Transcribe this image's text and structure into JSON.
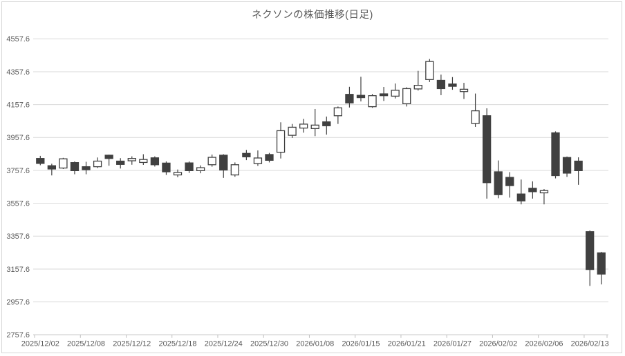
{
  "chart": {
    "title": "ネクソンの株価推移(日足)",
    "colors": {
      "up_fill": "#ffffff",
      "down_fill": "#404040",
      "candle_outline": "#404040",
      "wick": "#404040",
      "gridline": "#d9d9d9",
      "axis_line": "#bfbfbf",
      "axis_text": "#595959",
      "title_text": "#595959",
      "background": "#ffffff",
      "frame_border": "#d6d6d6"
    }
  },
  "chart_data": {
    "type": "candlestick",
    "title": "ネクソンの株価推移(日足)",
    "xlabel": "",
    "ylabel": "",
    "grid": true,
    "legend": false,
    "y_axis": {
      "min": 2757.6,
      "max": 4557.6,
      "step": 200,
      "tick_labels": [
        "4557.6",
        "4357.6",
        "4157.6",
        "3957.6",
        "3757.6",
        "3557.6",
        "3357.6",
        "3157.6",
        "2957.6",
        "2757.6"
      ]
    },
    "x_axis": {
      "label_every": 4,
      "tick_labels": [
        "2025/12/02",
        "2025/12/08",
        "2025/12/12",
        "2025/12/18",
        "2025/12/24",
        "2025/12/30",
        "2026/01/08",
        "2026/01/15",
        "2026/01/21",
        "2026/01/27",
        "2026/02/02",
        "2026/02/06",
        "2026/02/13"
      ]
    },
    "series": [
      {
        "date": "2025/12/02",
        "open": 3830,
        "high": 3846,
        "low": 3789,
        "close": 3800
      },
      {
        "date": "2025/12/03",
        "open": 3786,
        "high": 3798,
        "low": 3727,
        "close": 3766
      },
      {
        "date": "2025/12/04",
        "open": 3772,
        "high": 3834,
        "low": 3766,
        "close": 3828
      },
      {
        "date": "2025/12/05",
        "open": 3805,
        "high": 3812,
        "low": 3734,
        "close": 3756
      },
      {
        "date": "2025/12/08",
        "open": 3780,
        "high": 3810,
        "low": 3734,
        "close": 3762
      },
      {
        "date": "2025/12/09",
        "open": 3780,
        "high": 3836,
        "low": 3772,
        "close": 3814
      },
      {
        "date": "2025/12/10",
        "open": 3850,
        "high": 3853,
        "low": 3786,
        "close": 3830
      },
      {
        "date": "2025/12/11",
        "open": 3814,
        "high": 3832,
        "low": 3769,
        "close": 3794
      },
      {
        "date": "2025/12/12",
        "open": 3816,
        "high": 3843,
        "low": 3792,
        "close": 3830
      },
      {
        "date": "2025/12/15",
        "open": 3806,
        "high": 3856,
        "low": 3791,
        "close": 3824
      },
      {
        "date": "2025/12/16",
        "open": 3834,
        "high": 3843,
        "low": 3781,
        "close": 3792
      },
      {
        "date": "2025/12/17",
        "open": 3802,
        "high": 3812,
        "low": 3730,
        "close": 3749
      },
      {
        "date": "2025/12/18",
        "open": 3730,
        "high": 3763,
        "low": 3716,
        "close": 3745
      },
      {
        "date": "2025/12/19",
        "open": 3803,
        "high": 3812,
        "low": 3742,
        "close": 3756
      },
      {
        "date": "2025/12/22",
        "open": 3756,
        "high": 3788,
        "low": 3740,
        "close": 3774
      },
      {
        "date": "2025/12/23",
        "open": 3792,
        "high": 3854,
        "low": 3780,
        "close": 3837
      },
      {
        "date": "2025/12/24",
        "open": 3850,
        "high": 3856,
        "low": 3712,
        "close": 3760
      },
      {
        "date": "2025/12/25",
        "open": 3730,
        "high": 3806,
        "low": 3719,
        "close": 3792
      },
      {
        "date": "2025/12/26",
        "open": 3861,
        "high": 3882,
        "low": 3820,
        "close": 3840
      },
      {
        "date": "2025/12/29",
        "open": 3799,
        "high": 3879,
        "low": 3785,
        "close": 3833
      },
      {
        "date": "2025/12/30",
        "open": 3854,
        "high": 3864,
        "low": 3806,
        "close": 3819
      },
      {
        "date": "2026/01/05",
        "open": 3868,
        "high": 4050,
        "low": 3830,
        "close": 3999
      },
      {
        "date": "2026/01/06",
        "open": 3971,
        "high": 4040,
        "low": 3955,
        "close": 4020
      },
      {
        "date": "2026/01/07",
        "open": 4015,
        "high": 4071,
        "low": 3987,
        "close": 4039
      },
      {
        "date": "2026/01/08",
        "open": 4012,
        "high": 4131,
        "low": 3966,
        "close": 4033
      },
      {
        "date": "2026/01/09",
        "open": 4053,
        "high": 4085,
        "low": 3975,
        "close": 4029
      },
      {
        "date": "2026/01/13",
        "open": 4090,
        "high": 4146,
        "low": 4040,
        "close": 4138
      },
      {
        "date": "2026/01/14",
        "open": 4220,
        "high": 4266,
        "low": 4140,
        "close": 4168
      },
      {
        "date": "2026/01/15",
        "open": 4214,
        "high": 4327,
        "low": 4177,
        "close": 4200
      },
      {
        "date": "2026/01/16",
        "open": 4145,
        "high": 4222,
        "low": 4138,
        "close": 4212
      },
      {
        "date": "2026/01/19",
        "open": 4223,
        "high": 4265,
        "low": 4180,
        "close": 4212
      },
      {
        "date": "2026/01/20",
        "open": 4209,
        "high": 4286,
        "low": 4195,
        "close": 4245
      },
      {
        "date": "2026/01/21",
        "open": 4163,
        "high": 4263,
        "low": 4146,
        "close": 4255
      },
      {
        "date": "2026/01/22",
        "open": 4253,
        "high": 4363,
        "low": 4243,
        "close": 4275
      },
      {
        "date": "2026/01/23",
        "open": 4310,
        "high": 4435,
        "low": 4295,
        "close": 4420
      },
      {
        "date": "2026/01/26",
        "open": 4305,
        "high": 4340,
        "low": 4215,
        "close": 4255
      },
      {
        "date": "2026/01/27",
        "open": 4283,
        "high": 4325,
        "low": 4248,
        "close": 4269
      },
      {
        "date": "2026/01/28",
        "open": 4237,
        "high": 4290,
        "low": 4192,
        "close": 4251
      },
      {
        "date": "2026/01/29",
        "open": 4043,
        "high": 4225,
        "low": 4022,
        "close": 4120
      },
      {
        "date": "2026/01/30",
        "open": 4090,
        "high": 4135,
        "low": 3586,
        "close": 3683
      },
      {
        "date": "2026/02/02",
        "open": 3749,
        "high": 3818,
        "low": 3588,
        "close": 3610
      },
      {
        "date": "2026/02/03",
        "open": 3715,
        "high": 3747,
        "low": 3592,
        "close": 3665
      },
      {
        "date": "2026/02/04",
        "open": 3614,
        "high": 3702,
        "low": 3551,
        "close": 3572
      },
      {
        "date": "2026/02/05",
        "open": 3649,
        "high": 3691,
        "low": 3586,
        "close": 3628
      },
      {
        "date": "2026/02/06",
        "open": 3621,
        "high": 3644,
        "low": 3551,
        "close": 3635
      },
      {
        "date": "2026/02/09",
        "open": 3986,
        "high": 3995,
        "low": 3709,
        "close": 3726
      },
      {
        "date": "2026/02/10",
        "open": 3836,
        "high": 3842,
        "low": 3718,
        "close": 3741
      },
      {
        "date": "2026/02/12",
        "open": 3814,
        "high": 3837,
        "low": 3670,
        "close": 3756
      },
      {
        "date": "2026/02/13",
        "open": 3385,
        "high": 3392,
        "low": 3055,
        "close": 3155
      },
      {
        "date": "2026/02/16",
        "open": 3256,
        "high": 3262,
        "low": 3064,
        "close": 3127
      }
    ]
  }
}
